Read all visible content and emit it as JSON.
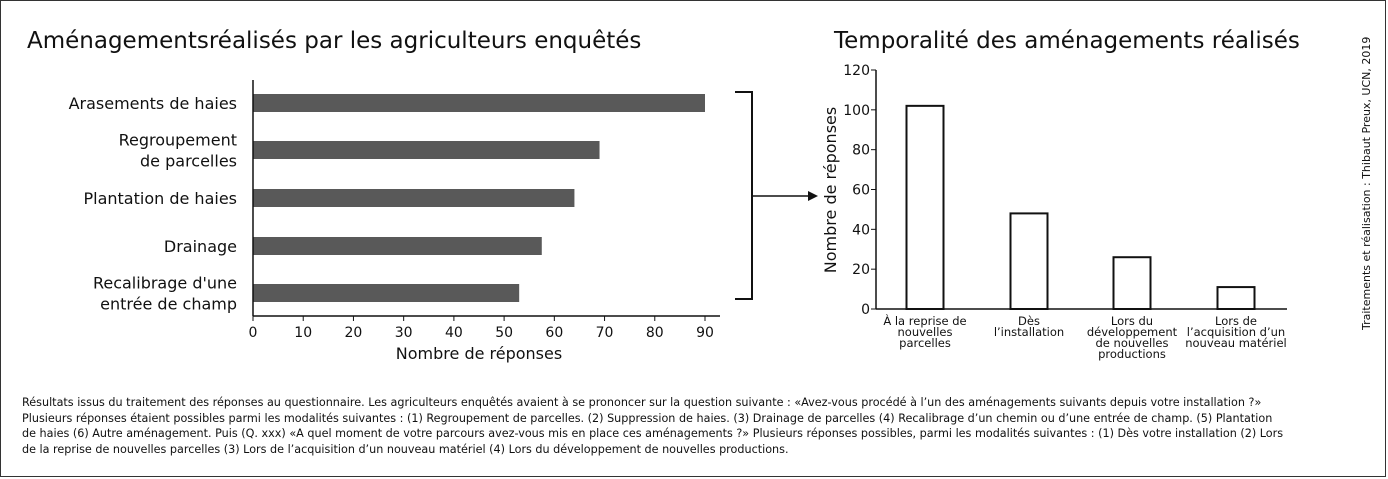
{
  "credit": "Traitements et réalisation : Thibaut Preux, UCN, 2019",
  "notes": [
    "Résultats issus du traitement des réponses au questionnaire. Les agriculteurs enquêtés avaient à se prononcer sur la question suivante :  «Avez-vous procédé à l’un des aménagements suivants depuis votre installation ?»",
    "Plusieurs réponses étaient possibles parmi les modalités suivantes : (1) Regroupement de parcelles. (2) Suppression de haies. (3) Drainage de parcelles (4) Recalibrage d’un chemin ou d’une entrée de champ. (5) Plantation",
    "de haies (6) Autre aménagement. Puis (Q. xxx) «A quel moment de votre parcours avez-vous mis en place ces aménagements ?» Plusieurs réponses possibles, parmi les modalités suivantes : (1) Dès votre installation (2) Lors",
    "de la reprise de nouvelles parcelles (3) Lors de l’acquisition d’un nouveau matériel (4) Lors du développement de nouvelles productions."
  ],
  "chart_data": [
    {
      "type": "bar",
      "orientation": "horizontal",
      "title": "Aménagementsréalisés par les agriculteurs enquêtés",
      "xlabel": "Nombre de réponses",
      "ylabel": "",
      "xlim": [
        0,
        90
      ],
      "xticks": [
        "0",
        "10",
        "20",
        "30",
        "40",
        "50",
        "60",
        "70",
        "80",
        "90"
      ],
      "categories": [
        [
          "Arasements de haies"
        ],
        [
          "Regroupement",
          "de parcelles"
        ],
        [
          "Plantation de haies"
        ],
        [
          "Drainage"
        ],
        [
          "Recalibrage d'une",
          "entrée de champ"
        ]
      ],
      "values": [
        90,
        69,
        64,
        57.5,
        53
      ],
      "bar_color": "#595959",
      "grid": false
    },
    {
      "type": "bar",
      "orientation": "vertical",
      "title": "Temporalité des aménagements réalisés",
      "xlabel": "",
      "ylabel": "Nombre de réponses",
      "ylim": [
        0,
        120
      ],
      "yticks": [
        "0",
        "20",
        "40",
        "60",
        "80",
        "100",
        "120"
      ],
      "categories": [
        [
          "À la reprise de",
          "nouvelles",
          "parcelles"
        ],
        [
          "Dès",
          "l’installation"
        ],
        [
          "Lors du",
          "développement",
          "de nouvelles",
          "productions"
        ],
        [
          "Lors de",
          "l’acquisition d’un",
          "nouveau matériel"
        ]
      ],
      "values": [
        102,
        48,
        26,
        11
      ],
      "bar_fill": "#ffffff",
      "bar_stroke": "#111111",
      "grid": false
    }
  ]
}
